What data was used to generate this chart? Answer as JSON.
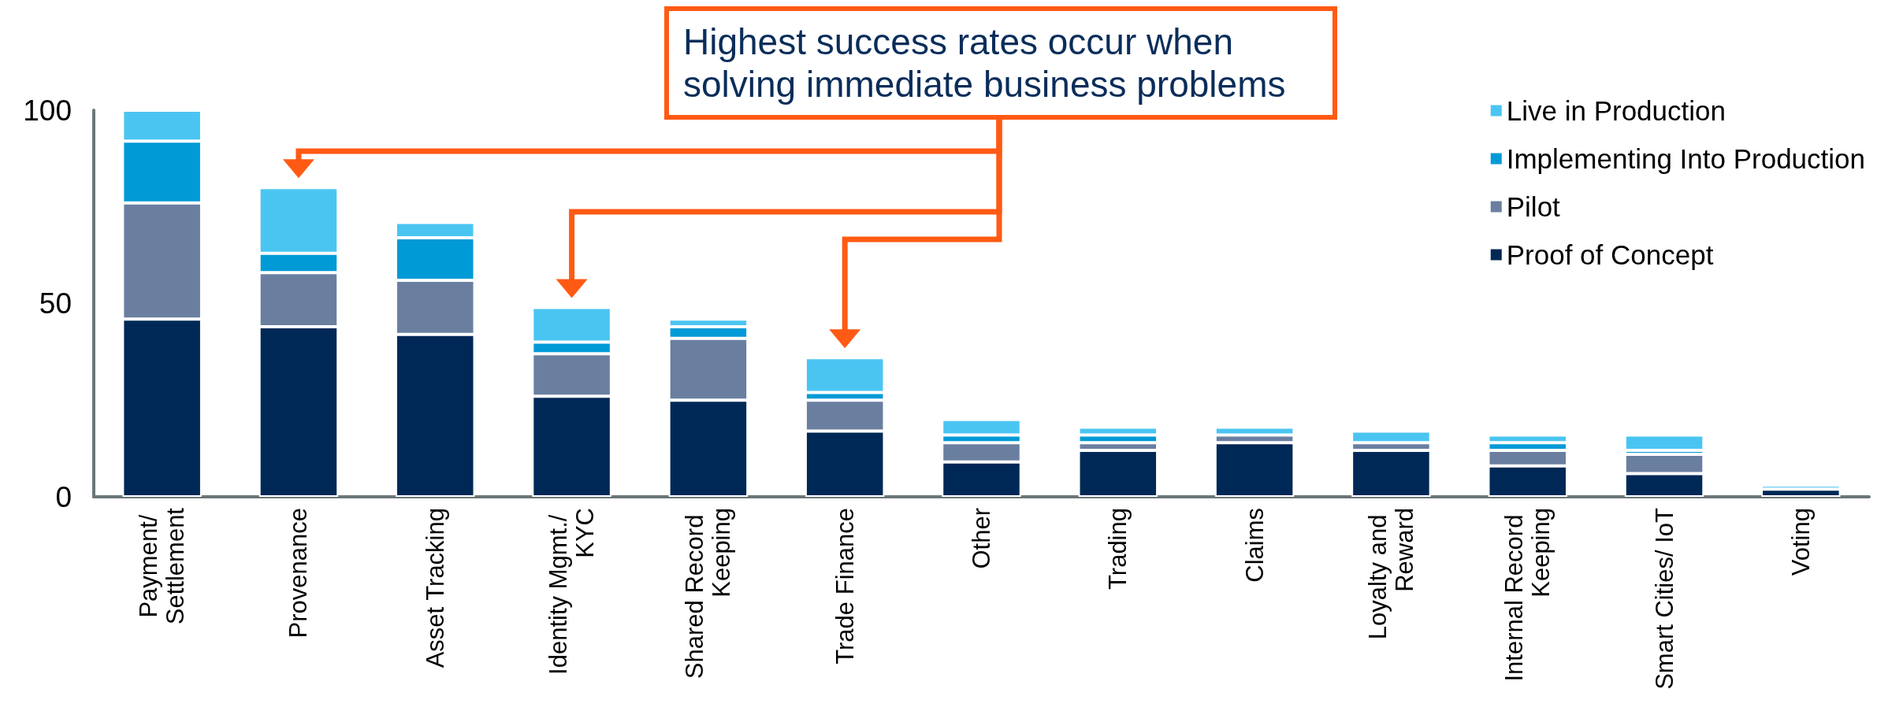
{
  "chart_data": {
    "type": "bar",
    "stacked": true,
    "categories": [
      "Payment/ Settlement",
      "Provenance",
      "Asset Tracking",
      "Identity Mgmt./ KYC",
      "Shared Record Keeping",
      "Trade Finance",
      "Other",
      "Trading",
      "Claims",
      "Loyalty and Reward",
      "Internal Record Keeping",
      "Smart Cities/ IoT",
      "Voting"
    ],
    "series": [
      {
        "name": "Proof of Concept",
        "color": "#002856",
        "values": [
          46,
          44,
          42,
          26,
          25,
          17,
          9,
          12,
          14,
          12,
          8,
          6,
          2
        ]
      },
      {
        "name": "Pilot",
        "color": "#6a7fa0",
        "values": [
          30,
          14,
          14,
          11,
          16,
          8,
          5,
          2,
          2,
          2,
          4,
          5,
          0
        ]
      },
      {
        "name": "Implementing Into Production",
        "color": "#009ad6",
        "values": [
          16,
          5,
          11,
          3,
          3,
          2,
          2,
          2,
          0,
          0,
          2,
          1,
          0
        ]
      },
      {
        "name": "Live in Production",
        "color": "#4ac5f2",
        "values": [
          8,
          17,
          4,
          9,
          2,
          9,
          4,
          2,
          2,
          3,
          2,
          4,
          1
        ]
      }
    ],
    "ylim": [
      0,
      100
    ],
    "yticks": [
      0,
      50,
      100
    ],
    "grid": false,
    "legend": "top right",
    "annotations": [
      "Highest success rates occur when solving immediate business problems"
    ]
  }
}
